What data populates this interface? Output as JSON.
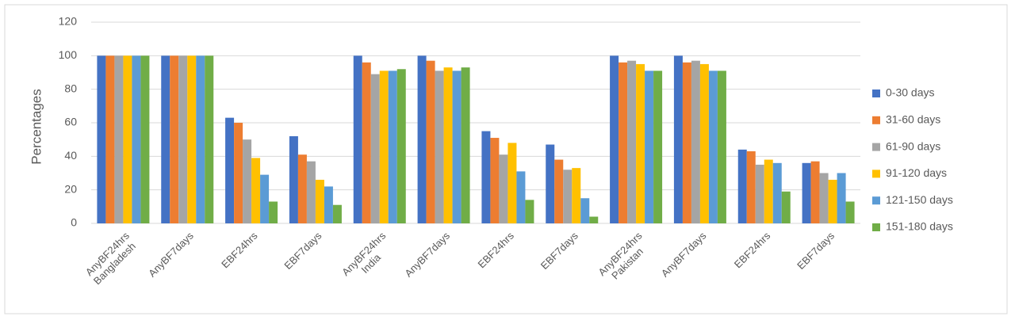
{
  "chart_data": {
    "type": "bar",
    "ylabel": "Percentages",
    "categories": [
      [
        "AnyBF24hrs",
        "Bangladesh"
      ],
      [
        "AnyBF7days"
      ],
      [
        "EBF24hrs"
      ],
      [
        "EBF7days"
      ],
      [
        "AnyBF24hrs",
        "India"
      ],
      [
        "AnyBF7days"
      ],
      [
        "EBF24hrs"
      ],
      [
        "EBF7days"
      ],
      [
        "AnyBF24hrs",
        "Pakistan"
      ],
      [
        "AnyBF7days"
      ],
      [
        "EBF24hrs"
      ],
      [
        "EBF7days"
      ]
    ],
    "series": [
      {
        "name": "0-30 days",
        "color": "#4472c4",
        "values": [
          100,
          100,
          63,
          52,
          100,
          100,
          55,
          47,
          100,
          100,
          44,
          36
        ]
      },
      {
        "name": "31-60 days",
        "color": "#ed7d31",
        "values": [
          100,
          100,
          60,
          41,
          96,
          97,
          51,
          38,
          96,
          96,
          43,
          37
        ]
      },
      {
        "name": "61-90 days",
        "color": "#a5a5a5",
        "values": [
          100,
          100,
          50,
          37,
          89,
          91,
          41,
          32,
          97,
          97,
          35,
          30
        ]
      },
      {
        "name": "91-120 days",
        "color": "#ffc000",
        "values": [
          100,
          100,
          39,
          26,
          91,
          93,
          48,
          33,
          95,
          95,
          38,
          26
        ]
      },
      {
        "name": "121-150 days",
        "color": "#5b9bd5",
        "values": [
          100,
          100,
          29,
          22,
          91,
          91,
          31,
          15,
          91,
          91,
          36,
          30
        ]
      },
      {
        "name": "151-180 days",
        "color": "#70ad47",
        "values": [
          100,
          100,
          13,
          11,
          92,
          93,
          14,
          4,
          91,
          91,
          19,
          13
        ]
      }
    ],
    "ylim": [
      0,
      120
    ],
    "yticks": [
      0,
      20,
      40,
      60,
      80,
      100,
      120
    ],
    "grid": true,
    "legend": "right"
  }
}
